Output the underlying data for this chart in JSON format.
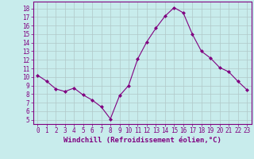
{
  "x": [
    0,
    1,
    2,
    3,
    4,
    5,
    6,
    7,
    8,
    9,
    10,
    11,
    12,
    13,
    14,
    15,
    16,
    17,
    18,
    19,
    20,
    21,
    22,
    23
  ],
  "y": [
    10.2,
    9.5,
    8.6,
    8.3,
    8.7,
    7.9,
    7.3,
    6.5,
    5.1,
    7.8,
    9.0,
    12.1,
    14.1,
    15.7,
    17.1,
    18.1,
    17.5,
    15.0,
    13.0,
    12.2,
    11.1,
    10.6,
    9.5,
    8.5
  ],
  "line_color": "#800080",
  "marker": "D",
  "markersize": 2.0,
  "linewidth": 0.8,
  "xlabel": "Windchill (Refroidissement éolien,°C)",
  "xlabel_fontsize": 6.5,
  "xticks": [
    0,
    1,
    2,
    3,
    4,
    5,
    6,
    7,
    8,
    9,
    10,
    11,
    12,
    13,
    14,
    15,
    16,
    17,
    18,
    19,
    20,
    21,
    22,
    23
  ],
  "yticks": [
    5,
    6,
    7,
    8,
    9,
    10,
    11,
    12,
    13,
    14,
    15,
    16,
    17,
    18
  ],
  "ylim": [
    4.5,
    18.8
  ],
  "xlim": [
    -0.5,
    23.5
  ],
  "bg_color": "#c8ecec",
  "grid_color": "#b0c8c8",
  "tick_color": "#800080",
  "tick_fontsize": 5.5,
  "spine_color": "#800080"
}
